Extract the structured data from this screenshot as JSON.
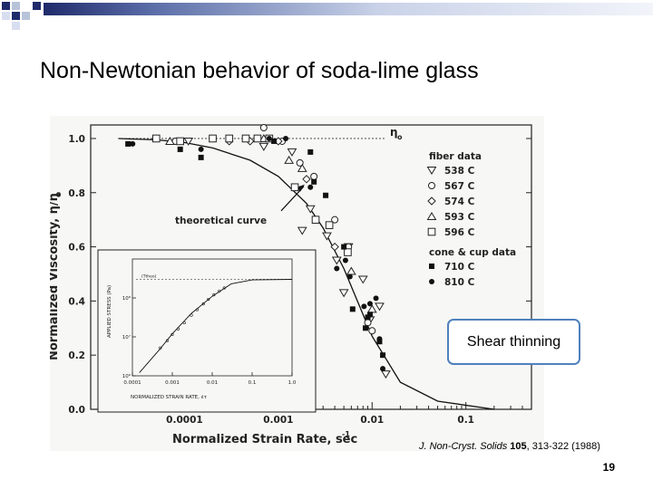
{
  "slide": {
    "title": "Non-Newtonian behavior of soda-lime glass",
    "callout": "Shear thinning",
    "citation": {
      "journal": "J. Non-Cryst. Solids ",
      "volume": "105",
      "rest": ", 313-322 (1988)"
    },
    "page_number": "19"
  },
  "colors": {
    "accent_blue": "#4f81bd",
    "corner_navy": "#1f2a6b",
    "corner_light": "#b8c3d9"
  },
  "chart_data": [
    {
      "type": "scatter",
      "title": "",
      "xlabel": "Normalized Strain Rate, sec",
      "xlabel_superscript": "-1",
      "ylabel": "Normalized Viscosity, η/η",
      "ylabel_subscript": "o",
      "xscale": "log",
      "xlim": [
        1e-05,
        0.5
      ],
      "ylim": [
        0,
        1.05
      ],
      "x_ticks": [
        0.0001,
        0.001,
        0.01,
        0.1
      ],
      "x_tick_labels": [
        "0.0001",
        "0.001",
        "0.01",
        "0.1"
      ],
      "y_ticks": [
        0,
        0.2,
        0.4,
        0.6,
        0.8,
        1.0
      ],
      "y_tick_labels": [
        "0.0",
        "0.2",
        "0.4",
        "0.6",
        "0.8",
        "1.0"
      ],
      "reference_line": {
        "y": 1.0,
        "label": "η",
        "label_sub": "o"
      },
      "theoretical_curve": {
        "label": "theoretical curve",
        "eta_over_eta0_at_x": [
          [
            2e-05,
            1.0
          ],
          [
            5e-05,
            0.995
          ],
          [
            0.0001,
            0.985
          ],
          [
            0.0002,
            0.965
          ],
          [
            0.0005,
            0.92
          ],
          [
            0.001,
            0.86
          ],
          [
            0.002,
            0.76
          ],
          [
            0.003,
            0.67
          ],
          [
            0.005,
            0.52
          ],
          [
            0.01,
            0.27
          ],
          [
            0.02,
            0.1
          ],
          [
            0.05,
            0.03
          ],
          [
            0.2,
            0.0
          ]
        ]
      },
      "legend_title_1": "fiber data",
      "legend_title_2": "cone & cup data",
      "legend_position": "right",
      "series": [
        {
          "name": "538 C",
          "marker": "triangle-down",
          "points": [
            [
              0.00011,
              0.99
            ],
            [
              0.0007,
              0.97
            ],
            [
              0.0014,
              0.95
            ],
            [
              0.0022,
              0.74
            ],
            [
              0.0018,
              0.66
            ],
            [
              0.0033,
              0.64
            ],
            [
              0.0056,
              0.6
            ],
            [
              0.008,
              0.48
            ],
            [
              0.0042,
              0.55
            ],
            [
              0.005,
              0.43
            ],
            [
              0.0095,
              0.33
            ],
            [
              0.012,
              0.38
            ],
            [
              0.014,
              0.13
            ]
          ]
        },
        {
          "name": "567 C",
          "marker": "circle-open",
          "points": [
            [
              8e-05,
              0.99
            ],
            [
              0.0007,
              1.04
            ],
            [
              0.0011,
              0.99
            ],
            [
              0.0017,
              0.91
            ],
            [
              0.0024,
              0.86
            ],
            [
              0.004,
              0.7
            ],
            [
              0.0056,
              0.6
            ],
            [
              0.009,
              0.32
            ],
            [
              0.01,
              0.29
            ]
          ]
        },
        {
          "name": "574 C",
          "marker": "diamond-open",
          "points": [
            [
              0.0003,
              0.99
            ],
            [
              0.0005,
              0.99
            ],
            [
              0.001,
              0.99
            ],
            [
              0.002,
              0.85
            ],
            [
              0.004,
              0.6
            ]
          ]
        },
        {
          "name": "593 C",
          "marker": "triangle-up",
          "points": [
            [
              7e-05,
              0.99
            ],
            [
              0.0007,
              1.0
            ],
            [
              0.0013,
              0.92
            ],
            [
              0.0018,
              0.89
            ],
            [
              0.006,
              0.51
            ],
            [
              0.01,
              0.37
            ]
          ]
        },
        {
          "name": "596 C",
          "marker": "square-open",
          "points": [
            [
              5e-05,
              1.0
            ],
            [
              9e-05,
              0.99
            ],
            [
              0.0002,
              1.0
            ],
            [
              0.0003,
              1.0
            ],
            [
              0.00045,
              1.0
            ],
            [
              0.0006,
              1.0
            ],
            [
              0.0008,
              1.0
            ],
            [
              0.0015,
              0.82
            ],
            [
              0.0025,
              0.7
            ],
            [
              0.0035,
              0.68
            ],
            [
              0.0055,
              0.58
            ]
          ]
        },
        {
          "name": "710 C",
          "marker": "square-filled",
          "points": [
            [
              2.5e-05,
              0.98
            ],
            [
              9e-05,
              0.96
            ],
            [
              0.00015,
              0.93
            ],
            [
              0.0009,
              0.99
            ],
            [
              0.0022,
              0.95
            ],
            [
              0.0024,
              0.84
            ],
            [
              0.0032,
              0.79
            ],
            [
              0.005,
              0.6
            ],
            [
              0.0062,
              0.37
            ],
            [
              0.0085,
              0.3
            ],
            [
              0.0095,
              0.35
            ],
            [
              0.012,
              0.25
            ],
            [
              0.013,
              0.2
            ],
            [
              0.009,
              0.34
            ]
          ]
        },
        {
          "name": "810 C",
          "marker": "circle-filled",
          "points": [
            [
              2.8e-05,
              0.98
            ],
            [
              0.00015,
              0.96
            ],
            [
              0.0008,
              1.0
            ],
            [
              0.0012,
              1.0
            ],
            [
              0.0022,
              0.82
            ],
            [
              0.0042,
              0.52
            ],
            [
              0.0052,
              0.55
            ],
            [
              0.0058,
              0.49
            ],
            [
              0.0082,
              0.38
            ],
            [
              0.0095,
              0.39
            ],
            [
              0.011,
              0.41
            ],
            [
              0.012,
              0.26
            ],
            [
              0.013,
              0.15
            ]
          ]
        }
      ],
      "annotation": {
        "text": "theoretical curve",
        "arrow_to": [
          0.002,
          0.84
        ]
      }
    },
    {
      "type": "line",
      "role": "inset",
      "title": "",
      "xlabel": "NORMALIZED STRAIN RATE, ",
      "xlabel_symbol": "ε̇τ",
      "ylabel": "APPLIED STRESS (Pa)",
      "xscale": "log",
      "yscale": "log",
      "xlim": [
        0.0001,
        1.0
      ],
      "ylim": [
        1000000.0,
        1000000000.0
      ],
      "x_ticks": [
        0.0001,
        0.001,
        0.01,
        0.1,
        1.0
      ],
      "x_tick_labels": [
        "0.0001",
        "0.001",
        "0.01",
        "0.1",
        "1.0"
      ],
      "y_tick_labels": [
        "10⁸",
        "10⁷",
        "10⁶"
      ],
      "y_tick_values": [
        100000000.0,
        10000000.0,
        1000000.0
      ],
      "plateau_label": "(Ttheo)",
      "plateau_level": 300000000.0,
      "curve": [
        [
          0.00015,
          1200000.0
        ],
        [
          0.0005,
          5000000.0
        ],
        [
          0.001,
          12000000.0
        ],
        [
          0.003,
          40000000.0
        ],
        [
          0.01,
          110000000.0
        ],
        [
          0.03,
          230000000.0
        ],
        [
          0.1,
          290000000.0
        ],
        [
          1.0,
          300000000.0
        ]
      ],
      "points": [
        [
          0.0005,
          5200000.0
        ],
        [
          0.00075,
          8000000.0
        ],
        [
          0.001,
          11500000.0
        ],
        [
          0.0014,
          16000000.0
        ],
        [
          0.002,
          23000000.0
        ],
        [
          0.003,
          36000000.0
        ],
        [
          0.0042,
          50000000.0
        ],
        [
          0.006,
          70000000.0
        ],
        [
          0.008,
          92000000.0
        ],
        [
          0.011,
          120000000.0
        ],
        [
          0.015,
          150000000.0
        ],
        [
          0.02,
          180000000.0
        ]
      ]
    }
  ]
}
